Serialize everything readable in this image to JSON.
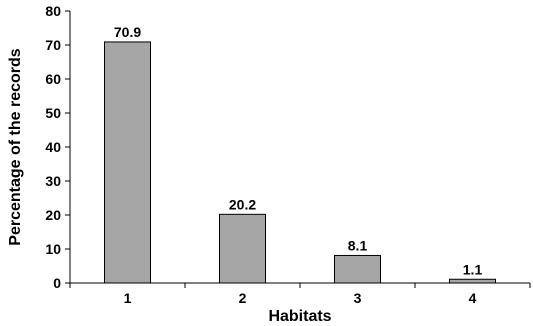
{
  "chart_data": {
    "type": "bar",
    "title": "",
    "xlabel": "Habitats",
    "ylabel": "Percentage of the records",
    "categories": [
      "1",
      "2",
      "3",
      "4"
    ],
    "values": [
      70.9,
      20.2,
      8.1,
      1.1
    ],
    "data_labels": [
      "70.9",
      "20.2",
      "8.1",
      "1.1"
    ],
    "ylim": [
      0,
      80
    ],
    "yticks": [
      0,
      10,
      20,
      30,
      40,
      50,
      60,
      70,
      80
    ],
    "grid": false,
    "legend": "none",
    "bar_color": "#a6a6a6",
    "bar_edge_color": "#000000"
  }
}
